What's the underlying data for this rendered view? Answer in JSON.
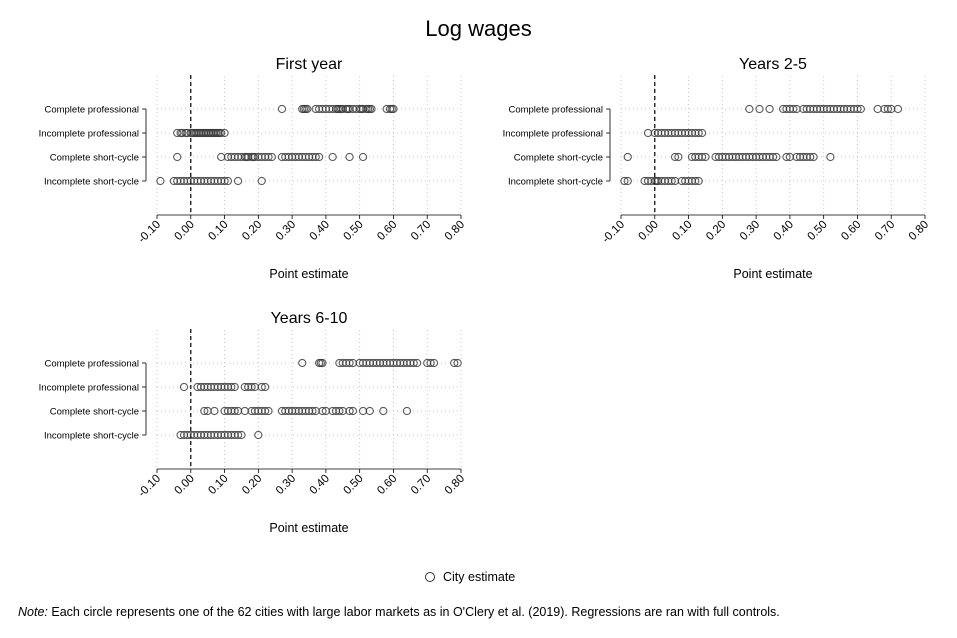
{
  "title": "Log wages",
  "legend": {
    "label": "City estimate"
  },
  "footnote": {
    "label": "Note:",
    "text": "Each circle represents one of the 62 cities with large labor markets as in O'Clery et al. (2019). Regressions are ran with full controls."
  },
  "chart_data": [
    {
      "type": "scatter",
      "title": "First year",
      "xlabel": "Point estimate",
      "xlim": [
        -0.1,
        0.8
      ],
      "xticks": [
        "-0.10",
        "0.00",
        "0.10",
        "0.20",
        "0.30",
        "0.40",
        "0.50",
        "0.60",
        "0.70",
        "0.80"
      ],
      "reference_line": 0,
      "categories": [
        "Complete professional",
        "Incomplete professional",
        "Complete short-cycle",
        "Incomplete short-cycle"
      ],
      "series": [
        {
          "category": "Complete professional",
          "values": [
            0.27,
            0.33,
            0.335,
            0.34,
            0.345,
            0.37,
            0.38,
            0.39,
            0.4,
            0.41,
            0.42,
            0.43,
            0.435,
            0.44,
            0.445,
            0.45,
            0.46,
            0.465,
            0.47,
            0.48,
            0.49,
            0.5,
            0.505,
            0.51,
            0.52,
            0.525,
            0.53,
            0.535,
            0.58,
            0.59,
            0.595,
            0.6
          ]
        },
        {
          "category": "Incomplete professional",
          "values": [
            -0.04,
            -0.03,
            -0.025,
            -0.015,
            -0.01,
            0.0,
            0.005,
            0.01,
            0.015,
            0.02,
            0.025,
            0.03,
            0.035,
            0.04,
            0.045,
            0.05,
            0.055,
            0.06,
            0.065,
            0.07,
            0.075,
            0.08,
            0.085,
            0.09,
            0.1
          ]
        },
        {
          "category": "Complete short-cycle",
          "values": [
            -0.04,
            0.09,
            0.11,
            0.12,
            0.13,
            0.14,
            0.15,
            0.16,
            0.165,
            0.17,
            0.18,
            0.185,
            0.19,
            0.2,
            0.21,
            0.22,
            0.23,
            0.24,
            0.27,
            0.28,
            0.29,
            0.3,
            0.31,
            0.32,
            0.33,
            0.34,
            0.35,
            0.36,
            0.37,
            0.38,
            0.42,
            0.47,
            0.51
          ]
        },
        {
          "category": "Incomplete short-cycle",
          "values": [
            -0.09,
            -0.05,
            -0.04,
            -0.03,
            -0.02,
            -0.01,
            0.0,
            0.01,
            0.02,
            0.03,
            0.04,
            0.05,
            0.06,
            0.07,
            0.08,
            0.09,
            0.1,
            0.11,
            0.14,
            0.21
          ]
        }
      ]
    },
    {
      "type": "scatter",
      "title": "Years 2-5",
      "xlabel": "Point estimate",
      "xlim": [
        -0.1,
        0.8
      ],
      "xticks": [
        "-0.10",
        "0.00",
        "0.10",
        "0.20",
        "0.30",
        "0.40",
        "0.50",
        "0.60",
        "0.70",
        "0.80"
      ],
      "reference_line": 0,
      "categories": [
        "Complete professional",
        "Incomplete professional",
        "Complete short-cycle",
        "Incomplete short-cycle"
      ],
      "series": [
        {
          "category": "Complete professional",
          "values": [
            0.28,
            0.31,
            0.34,
            0.38,
            0.39,
            0.4,
            0.41,
            0.42,
            0.44,
            0.45,
            0.46,
            0.47,
            0.48,
            0.49,
            0.5,
            0.51,
            0.52,
            0.53,
            0.54,
            0.55,
            0.56,
            0.57,
            0.58,
            0.59,
            0.6,
            0.61,
            0.66,
            0.68,
            0.69,
            0.7,
            0.72
          ]
        },
        {
          "category": "Incomplete professional",
          "values": [
            -0.02,
            0.0,
            0.01,
            0.02,
            0.03,
            0.04,
            0.05,
            0.06,
            0.07,
            0.08,
            0.09,
            0.1,
            0.11,
            0.12,
            0.13,
            0.14
          ]
        },
        {
          "category": "Complete short-cycle",
          "values": [
            -0.08,
            0.06,
            0.07,
            0.11,
            0.12,
            0.13,
            0.14,
            0.15,
            0.18,
            0.19,
            0.2,
            0.21,
            0.22,
            0.23,
            0.24,
            0.25,
            0.26,
            0.27,
            0.28,
            0.29,
            0.3,
            0.31,
            0.32,
            0.33,
            0.34,
            0.35,
            0.36,
            0.39,
            0.4,
            0.42,
            0.43,
            0.44,
            0.45,
            0.46,
            0.47,
            0.52
          ]
        },
        {
          "category": "Incomplete short-cycle",
          "values": [
            -0.09,
            -0.08,
            -0.03,
            -0.02,
            -0.01,
            0.0,
            0.005,
            0.01,
            0.02,
            0.03,
            0.04,
            0.05,
            0.06,
            0.08,
            0.09,
            0.1,
            0.11,
            0.12,
            0.13
          ]
        }
      ]
    },
    {
      "type": "scatter",
      "title": "Years 6-10",
      "xlabel": "Point estimate",
      "xlim": [
        -0.1,
        0.8
      ],
      "xticks": [
        "-0.10",
        "0.00",
        "0.10",
        "0.20",
        "0.30",
        "0.40",
        "0.50",
        "0.60",
        "0.70",
        "0.80"
      ],
      "reference_line": 0,
      "categories": [
        "Complete professional",
        "Incomplete professional",
        "Complete short-cycle",
        "Incomplete short-cycle"
      ],
      "series": [
        {
          "category": "Complete professional",
          "values": [
            0.33,
            0.38,
            0.385,
            0.39,
            0.44,
            0.45,
            0.46,
            0.47,
            0.48,
            0.5,
            0.51,
            0.52,
            0.53,
            0.54,
            0.55,
            0.56,
            0.57,
            0.58,
            0.59,
            0.6,
            0.61,
            0.62,
            0.63,
            0.64,
            0.65,
            0.66,
            0.67,
            0.7,
            0.71,
            0.72,
            0.78,
            0.79
          ]
        },
        {
          "category": "Incomplete professional",
          "values": [
            -0.02,
            0.02,
            0.03,
            0.04,
            0.05,
            0.06,
            0.07,
            0.08,
            0.09,
            0.1,
            0.11,
            0.12,
            0.13,
            0.16,
            0.17,
            0.18,
            0.19,
            0.21,
            0.22
          ]
        },
        {
          "category": "Complete short-cycle",
          "values": [
            0.04,
            0.05,
            0.07,
            0.1,
            0.11,
            0.12,
            0.13,
            0.14,
            0.16,
            0.18,
            0.19,
            0.2,
            0.21,
            0.22,
            0.23,
            0.27,
            0.28,
            0.29,
            0.3,
            0.31,
            0.32,
            0.33,
            0.34,
            0.35,
            0.36,
            0.37,
            0.39,
            0.4,
            0.42,
            0.43,
            0.44,
            0.45,
            0.47,
            0.48,
            0.51,
            0.53,
            0.57,
            0.64
          ]
        },
        {
          "category": "Incomplete short-cycle",
          "values": [
            -0.03,
            -0.02,
            -0.01,
            0.0,
            0.01,
            0.02,
            0.03,
            0.04,
            0.05,
            0.06,
            0.07,
            0.08,
            0.09,
            0.1,
            0.11,
            0.12,
            0.13,
            0.14,
            0.15,
            0.2
          ]
        }
      ]
    }
  ]
}
